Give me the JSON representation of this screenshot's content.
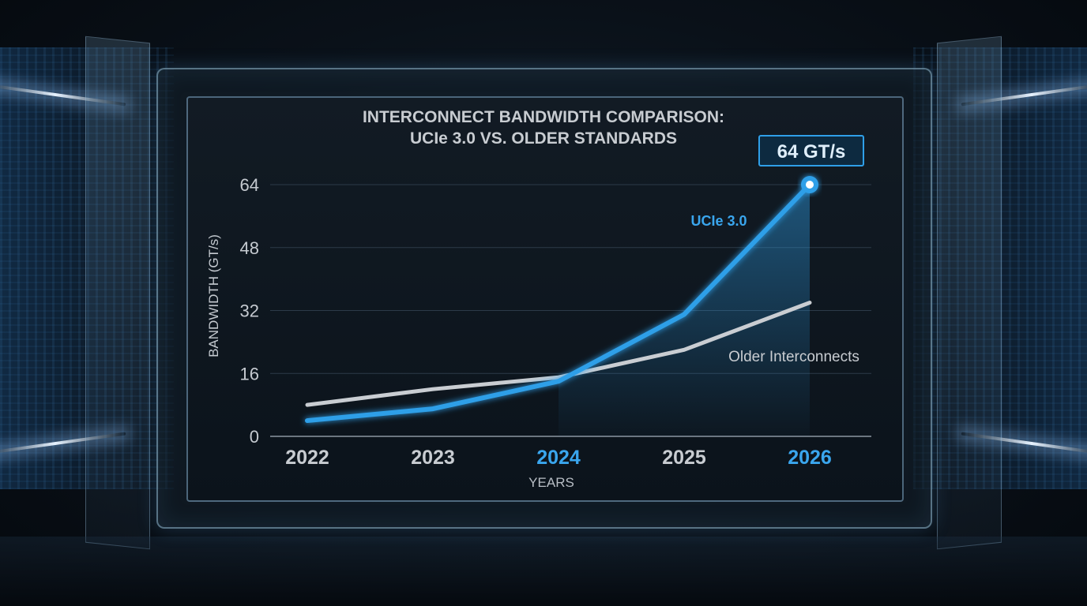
{
  "chart_data": {
    "type": "line",
    "title_line1": "INTERCONNECT BANDWIDTH COMPARISON:",
    "title_line2": "UCIe 3.0 VS. OLDER STANDARDS",
    "xlabel": "YEARS",
    "ylabel": "BANDWIDTH (GT/s)",
    "x": [
      "2022",
      "2023",
      "2024",
      "2025",
      "2026"
    ],
    "highlighted_x": [
      "2024",
      "2026"
    ],
    "yticks": [
      0,
      16,
      32,
      48,
      64
    ],
    "ylim": [
      0,
      64
    ],
    "grid": true,
    "series": [
      {
        "name": "UCIe 3.0",
        "values": [
          4,
          7,
          14,
          31,
          64
        ],
        "color": "#2f9fe8"
      },
      {
        "name": "Older Interconnects",
        "values": [
          8,
          12,
          15,
          22,
          34
        ],
        "color": "#c9cdd2"
      }
    ],
    "annotation": {
      "text": "64 GT/s"
    }
  }
}
